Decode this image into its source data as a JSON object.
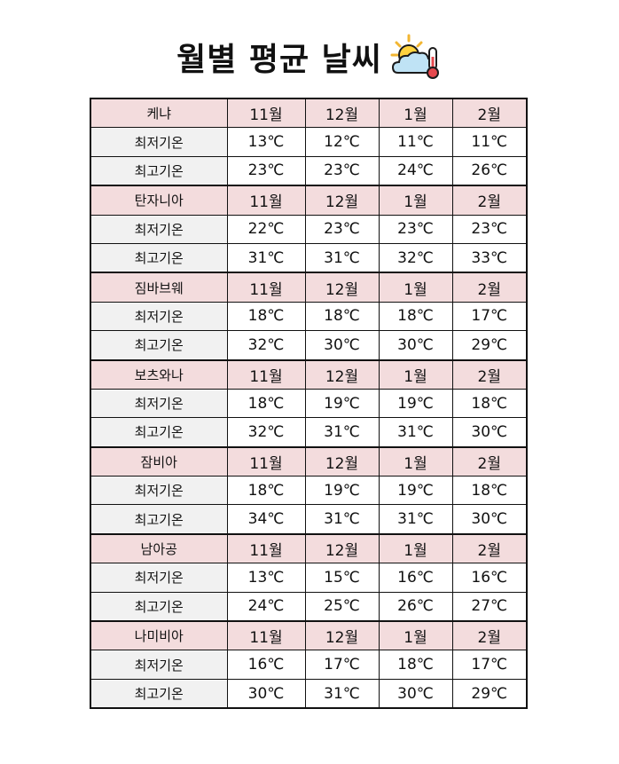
{
  "title": "월별 평균 날씨",
  "title_icon": "sun-cloud-thermometer-icon",
  "colors": {
    "header_bg": "#f3dcdd",
    "label_bg": "#f1f1f1",
    "border": "#111111"
  },
  "countries": [
    {
      "name": "케냐",
      "months": [
        "11월",
        "12월",
        "1월",
        "2월"
      ],
      "rows": [
        {
          "label": "최저기온",
          "values": [
            "13℃",
            "12℃",
            "11℃",
            "11℃"
          ]
        },
        {
          "label": "최고기온",
          "values": [
            "23℃",
            "23℃",
            "24℃",
            "26℃"
          ]
        }
      ]
    },
    {
      "name": "탄자니아",
      "months": [
        "11월",
        "12월",
        "1월",
        "2월"
      ],
      "rows": [
        {
          "label": "최저기온",
          "values": [
            "22℃",
            "23℃",
            "23℃",
            "23℃"
          ]
        },
        {
          "label": "최고기온",
          "values": [
            "31℃",
            "31℃",
            "32℃",
            "33℃"
          ]
        }
      ]
    },
    {
      "name": "짐바브웨",
      "months": [
        "11월",
        "12월",
        "1월",
        "2월"
      ],
      "rows": [
        {
          "label": "최저기온",
          "values": [
            "18℃",
            "18℃",
            "18℃",
            "17℃"
          ]
        },
        {
          "label": "최고기온",
          "values": [
            "32℃",
            "30℃",
            "30℃",
            "29℃"
          ]
        }
      ]
    },
    {
      "name": "보츠와나",
      "months": [
        "11월",
        "12월",
        "1월",
        "2월"
      ],
      "rows": [
        {
          "label": "최저기온",
          "values": [
            "18℃",
            "19℃",
            "19℃",
            "18℃"
          ]
        },
        {
          "label": "최고기온",
          "values": [
            "32℃",
            "31℃",
            "31℃",
            "30℃"
          ]
        }
      ]
    },
    {
      "name": "잠비아",
      "months": [
        "11월",
        "12월",
        "1월",
        "2월"
      ],
      "rows": [
        {
          "label": "최저기온",
          "values": [
            "18℃",
            "19℃",
            "19℃",
            "18℃"
          ]
        },
        {
          "label": "최고기온",
          "values": [
            "34℃",
            "31℃",
            "31℃",
            "30℃"
          ]
        }
      ]
    },
    {
      "name": "남아공",
      "months": [
        "11월",
        "12월",
        "1월",
        "2월"
      ],
      "rows": [
        {
          "label": "최저기온",
          "values": [
            "13℃",
            "15℃",
            "16℃",
            "16℃"
          ]
        },
        {
          "label": "최고기온",
          "values": [
            "24℃",
            "25℃",
            "26℃",
            "27℃"
          ]
        }
      ]
    },
    {
      "name": "나미비아",
      "months": [
        "11월",
        "12월",
        "1월",
        "2월"
      ],
      "rows": [
        {
          "label": "최저기온",
          "values": [
            "16℃",
            "17℃",
            "18℃",
            "17℃"
          ]
        },
        {
          "label": "최고기온",
          "values": [
            "30℃",
            "31℃",
            "30℃",
            "29℃"
          ]
        }
      ]
    }
  ]
}
